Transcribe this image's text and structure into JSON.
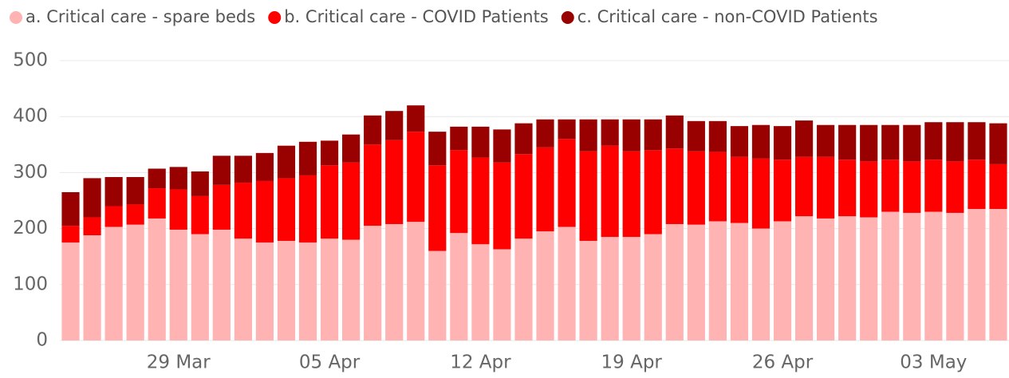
{
  "chart_data": {
    "type": "stacked_bar",
    "categories": [
      null,
      null,
      null,
      null,
      null,
      "29 Mar",
      null,
      null,
      null,
      null,
      null,
      null,
      "05 Apr",
      null,
      null,
      null,
      null,
      null,
      null,
      "12 Apr",
      null,
      null,
      null,
      null,
      null,
      null,
      "19 Apr",
      null,
      null,
      null,
      null,
      null,
      null,
      "26 Apr",
      null,
      null,
      null,
      null,
      null,
      null,
      "03 May",
      null,
      null,
      null
    ],
    "series": [
      {
        "name": "a. Critical care - spare beds",
        "color": "#ffb3b3",
        "values": [
          175,
          188,
          203,
          207,
          218,
          198,
          190,
          198,
          182,
          175,
          178,
          175,
          182,
          180,
          205,
          208,
          212,
          160,
          192,
          172,
          163,
          182,
          195,
          203,
          178,
          185,
          185,
          190,
          208,
          207,
          213,
          210,
          200,
          213,
          222,
          218,
          222,
          220,
          230,
          228,
          230,
          228,
          235,
          235
        ]
      },
      {
        "name": "b. Critical care - COVID Patients",
        "color": "#ff0000",
        "values": [
          30,
          32,
          37,
          36,
          54,
          72,
          68,
          80,
          100,
          110,
          112,
          120,
          131,
          138,
          145,
          150,
          161,
          153,
          148,
          155,
          155,
          151,
          150,
          157,
          160,
          163,
          153,
          150,
          135,
          131,
          124,
          118,
          125,
          110,
          106,
          110,
          101,
          100,
          93,
          92,
          93,
          92,
          88,
          80
        ]
      },
      {
        "name": "c. Critical care - non-COVID Patients",
        "color": "#990000",
        "values": [
          60,
          70,
          52,
          49,
          35,
          40,
          44,
          52,
          48,
          50,
          58,
          60,
          44,
          50,
          52,
          52,
          47,
          60,
          42,
          55,
          59,
          55,
          50,
          35,
          57,
          47,
          57,
          55,
          59,
          54,
          55,
          55,
          60,
          60,
          65,
          57,
          62,
          65,
          62,
          65,
          67,
          70,
          67,
          73
        ]
      }
    ],
    "ylim": [
      0,
      500
    ],
    "yticks": [
      0,
      100,
      200,
      300,
      400,
      500
    ],
    "grid": true,
    "legend": "top-left"
  }
}
